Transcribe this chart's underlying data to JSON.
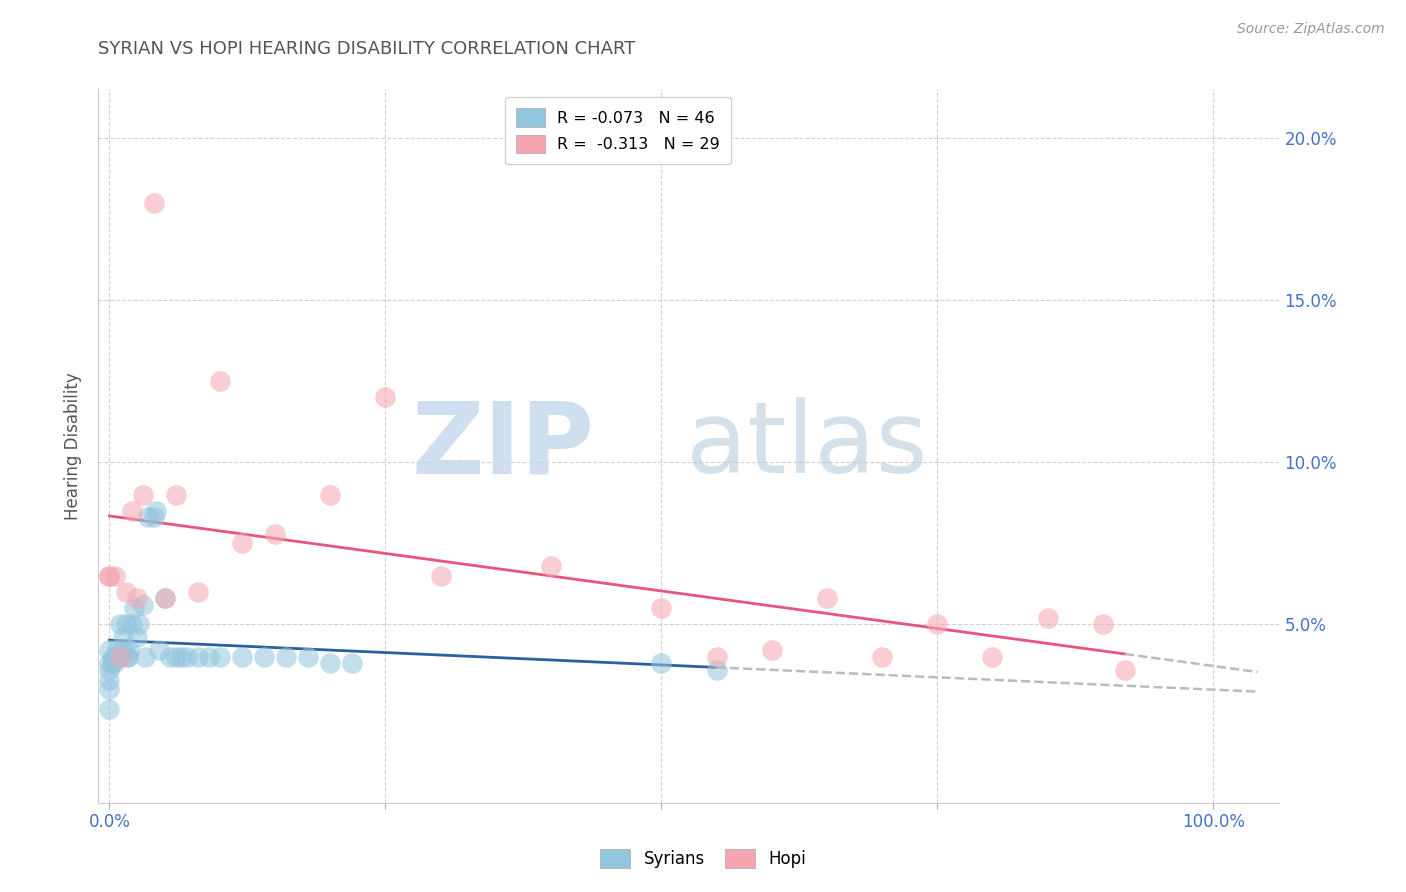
{
  "title": "SYRIAN VS HOPI HEARING DISABILITY CORRELATION CHART",
  "source": "Source: ZipAtlas.com",
  "ylabel": "Hearing Disability",
  "ylim": [
    -0.005,
    0.215
  ],
  "xlim": [
    -0.01,
    1.06
  ],
  "yticks": [
    0.05,
    0.1,
    0.15,
    0.2
  ],
  "ytick_labels": [
    "5.0%",
    "10.0%",
    "15.0%",
    "20.0%"
  ],
  "legend_r1": "R = -0.073   N = 46",
  "legend_r2": "R =  -0.313   N = 29",
  "syrians_color": "#92C5DE",
  "hopi_color": "#F4A5B0",
  "trendline_syrian_color": "#2C5F9E",
  "trendline_hopi_color": "#E8547A",
  "trendline_dashed_color": "#BBBBBB",
  "syrian_x": [
    0.0,
    0.0,
    0.0,
    0.0,
    0.0,
    0.0,
    0.002,
    0.003,
    0.004,
    0.005,
    0.007,
    0.008,
    0.009,
    0.01,
    0.012,
    0.013,
    0.015,
    0.016,
    0.017,
    0.018,
    0.02,
    0.022,
    0.025,
    0.027,
    0.03,
    0.032,
    0.035,
    0.04,
    0.042,
    0.045,
    0.05,
    0.055,
    0.06,
    0.065,
    0.07,
    0.08,
    0.09,
    0.1,
    0.12,
    0.14,
    0.16,
    0.18,
    0.2,
    0.22,
    0.5,
    0.55
  ],
  "syrian_y": [
    0.042,
    0.038,
    0.036,
    0.033,
    0.03,
    0.024,
    0.038,
    0.04,
    0.038,
    0.04,
    0.042,
    0.04,
    0.04,
    0.05,
    0.046,
    0.042,
    0.05,
    0.04,
    0.04,
    0.042,
    0.05,
    0.055,
    0.046,
    0.05,
    0.056,
    0.04,
    0.083,
    0.083,
    0.085,
    0.042,
    0.058,
    0.04,
    0.04,
    0.04,
    0.04,
    0.04,
    0.04,
    0.04,
    0.04,
    0.04,
    0.04,
    0.04,
    0.038,
    0.038,
    0.038,
    0.036
  ],
  "hopi_x": [
    0.0,
    0.0,
    0.005,
    0.01,
    0.015,
    0.02,
    0.025,
    0.03,
    0.04,
    0.05,
    0.06,
    0.08,
    0.1,
    0.12,
    0.15,
    0.2,
    0.25,
    0.3,
    0.4,
    0.5,
    0.55,
    0.6,
    0.65,
    0.7,
    0.75,
    0.8,
    0.85,
    0.9,
    0.92
  ],
  "hopi_y": [
    0.065,
    0.065,
    0.065,
    0.04,
    0.06,
    0.085,
    0.058,
    0.09,
    0.18,
    0.058,
    0.09,
    0.06,
    0.125,
    0.075,
    0.078,
    0.09,
    0.12,
    0.065,
    0.068,
    0.055,
    0.04,
    0.042,
    0.058,
    0.04,
    0.05,
    0.04,
    0.052,
    0.05,
    0.036
  ]
}
